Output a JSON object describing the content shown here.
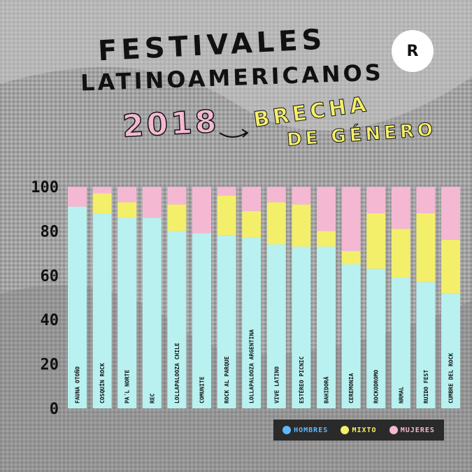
{
  "header": {
    "title_line1": "FESTIVALES",
    "title_line2": "LATINOAMERICANOS",
    "year": "2018",
    "subtitle_line1": "BRECHA",
    "subtitle_line2": "DE GÉNERO",
    "logo_text": "R"
  },
  "colors": {
    "hombres": "#b8f1f0",
    "mixto": "#f4ef6a",
    "mujeres": "#f4b8d2"
  },
  "legend": [
    {
      "label": "HOMBRES",
      "color": "#5fb8ff"
    },
    {
      "label": "MIXTO",
      "color": "#f4ef6a"
    },
    {
      "label": "MUJERES",
      "color": "#f4b8d2"
    }
  ],
  "chart_data": {
    "type": "bar",
    "stacked": true,
    "ylim": [
      0,
      100
    ],
    "yticks": [
      "0",
      "20",
      "40",
      "60",
      "80",
      "100"
    ],
    "categories": [
      "FAUNA OTOÑO",
      "COSQUÍN ROCK",
      "PA´L NORTE",
      "REC",
      "LOLLAPALOOZA CHILE",
      "COMUNITE",
      "ROCK AL PARQUE",
      "LOLLAPALOOZA ARGENTINA",
      "VIVE LATINO",
      "ESTÉREO PICNIC",
      "BAHIDORÁ",
      "CEREMONIA",
      "ROCKODROMO",
      "NRMAL",
      "RUIDO FEST",
      "CUMBRE DEL ROCK"
    ],
    "series": [
      {
        "name": "HOMBRES",
        "values": [
          91,
          88,
          86,
          86,
          80,
          79,
          78,
          77,
          74,
          73,
          73,
          65,
          63,
          59,
          57,
          52
        ]
      },
      {
        "name": "MIXTO",
        "values": [
          0,
          9,
          7,
          0,
          12,
          0,
          18,
          12,
          19,
          19,
          7,
          6,
          25,
          22,
          31,
          24
        ]
      },
      {
        "name": "MUJERES",
        "values": [
          9,
          3,
          7,
          14,
          8,
          21,
          4,
          11,
          7,
          8,
          20,
          29,
          12,
          19,
          12,
          24
        ]
      }
    ]
  }
}
